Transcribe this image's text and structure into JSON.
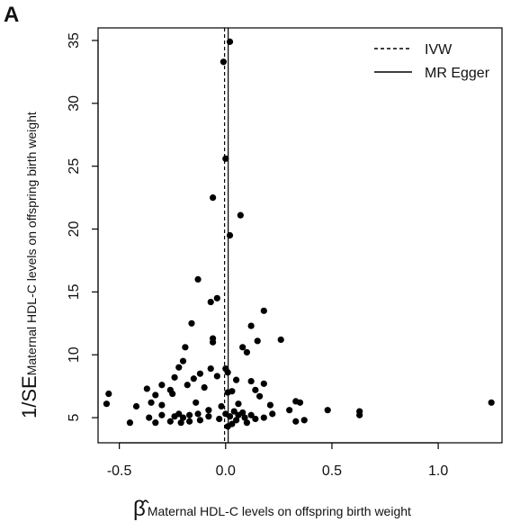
{
  "panel_label": "A",
  "chart_data": {
    "type": "scatter",
    "xlabel": {
      "main": "β̂",
      "sub": "Maternal HDL-C levels on offspring birth weight"
    },
    "ylabel": {
      "main": "1/SE",
      "sub": "Maternal HDL-C levels on offspring birth weight"
    },
    "xlim": [
      -0.6,
      1.3
    ],
    "ylim": [
      3,
      36
    ],
    "x_ticks": [
      -0.5,
      0.0,
      0.5,
      1.0
    ],
    "x_tick_labels": [
      "-0.5",
      "0.0",
      "0.5",
      "1.0"
    ],
    "y_ticks": [
      5,
      10,
      15,
      20,
      25,
      30,
      35
    ],
    "y_tick_labels": [
      "5",
      "10",
      "15",
      "20",
      "25",
      "30",
      "35"
    ],
    "grid": false,
    "legend": {
      "placement": "top-right",
      "entries": [
        {
          "label": "IVW",
          "line_style": "dashed",
          "x": -0.005
        },
        {
          "label": "MR Egger",
          "line_style": "solid",
          "x": 0.012
        }
      ]
    },
    "points": [
      {
        "x": 0.02,
        "y": 34.9
      },
      {
        "x": -0.01,
        "y": 33.3
      },
      {
        "x": 0.0,
        "y": 25.6
      },
      {
        "x": -0.06,
        "y": 22.5
      },
      {
        "x": 0.07,
        "y": 21.1
      },
      {
        "x": 0.02,
        "y": 19.5
      },
      {
        "x": -0.13,
        "y": 16.0
      },
      {
        "x": -0.04,
        "y": 14.5
      },
      {
        "x": -0.07,
        "y": 14.2
      },
      {
        "x": 0.18,
        "y": 13.5
      },
      {
        "x": -0.16,
        "y": 12.5
      },
      {
        "x": 0.12,
        "y": 12.3
      },
      {
        "x": -0.06,
        "y": 11.3
      },
      {
        "x": 0.15,
        "y": 11.1
      },
      {
        "x": 0.26,
        "y": 11.2
      },
      {
        "x": -0.06,
        "y": 11.0
      },
      {
        "x": -0.19,
        "y": 10.6
      },
      {
        "x": 0.08,
        "y": 10.6
      },
      {
        "x": 0.1,
        "y": 10.2
      },
      {
        "x": -0.2,
        "y": 9.5
      },
      {
        "x": -0.22,
        "y": 9.0
      },
      {
        "x": -0.07,
        "y": 8.9
      },
      {
        "x": -0.12,
        "y": 8.5
      },
      {
        "x": 0.0,
        "y": 8.9
      },
      {
        "x": 0.01,
        "y": 8.6
      },
      {
        "x": -0.24,
        "y": 8.2
      },
      {
        "x": -0.15,
        "y": 8.1
      },
      {
        "x": -0.04,
        "y": 8.3
      },
      {
        "x": 0.05,
        "y": 8.0
      },
      {
        "x": 0.12,
        "y": 7.9
      },
      {
        "x": 0.18,
        "y": 7.7
      },
      {
        "x": -0.18,
        "y": 7.6
      },
      {
        "x": -0.3,
        "y": 7.6
      },
      {
        "x": -0.37,
        "y": 7.3
      },
      {
        "x": -0.26,
        "y": 7.2
      },
      {
        "x": -0.1,
        "y": 7.4
      },
      {
        "x": 0.01,
        "y": 7.0
      },
      {
        "x": 0.14,
        "y": 7.2
      },
      {
        "x": 0.03,
        "y": 7.1
      },
      {
        "x": -0.33,
        "y": 6.8
      },
      {
        "x": -0.25,
        "y": 6.9
      },
      {
        "x": 0.16,
        "y": 6.7
      },
      {
        "x": -0.55,
        "y": 6.9
      },
      {
        "x": -0.56,
        "y": 6.1
      },
      {
        "x": -0.42,
        "y": 5.9
      },
      {
        "x": -0.35,
        "y": 6.2
      },
      {
        "x": -0.3,
        "y": 6.0
      },
      {
        "x": -0.14,
        "y": 6.2
      },
      {
        "x": -0.02,
        "y": 5.9
      },
      {
        "x": 0.06,
        "y": 6.1
      },
      {
        "x": 0.21,
        "y": 6.0
      },
      {
        "x": 0.33,
        "y": 6.3
      },
      {
        "x": 0.35,
        "y": 6.2
      },
      {
        "x": 0.3,
        "y": 5.6
      },
      {
        "x": -0.36,
        "y": 5.0
      },
      {
        "x": -0.3,
        "y": 5.2
      },
      {
        "x": -0.24,
        "y": 5.1
      },
      {
        "x": -0.22,
        "y": 5.3
      },
      {
        "x": -0.2,
        "y": 5.0
      },
      {
        "x": -0.17,
        "y": 5.2
      },
      {
        "x": -0.13,
        "y": 5.3
      },
      {
        "x": -0.08,
        "y": 5.6
      },
      {
        "x": -0.08,
        "y": 5.1
      },
      {
        "x": -0.03,
        "y": 4.9
      },
      {
        "x": 0.0,
        "y": 5.3
      },
      {
        "x": 0.02,
        "y": 5.1
      },
      {
        "x": 0.04,
        "y": 5.5
      },
      {
        "x": 0.06,
        "y": 5.2
      },
      {
        "x": 0.08,
        "y": 5.4
      },
      {
        "x": 0.09,
        "y": 5.0
      },
      {
        "x": 0.12,
        "y": 5.2
      },
      {
        "x": 0.14,
        "y": 4.9
      },
      {
        "x": 0.18,
        "y": 5.0
      },
      {
        "x": 0.22,
        "y": 5.3
      },
      {
        "x": -0.45,
        "y": 4.6
      },
      {
        "x": -0.33,
        "y": 4.6
      },
      {
        "x": -0.26,
        "y": 4.7
      },
      {
        "x": -0.21,
        "y": 4.6
      },
      {
        "x": -0.17,
        "y": 4.7
      },
      {
        "x": 0.03,
        "y": 4.5
      },
      {
        "x": 0.1,
        "y": 4.6
      },
      {
        "x": 0.05,
        "y": 4.8
      },
      {
        "x": -0.12,
        "y": 4.8
      },
      {
        "x": 0.33,
        "y": 4.7
      },
      {
        "x": 0.37,
        "y": 4.8
      },
      {
        "x": 0.01,
        "y": 4.3
      },
      {
        "x": 0.48,
        "y": 5.6
      },
      {
        "x": 0.63,
        "y": 5.5
      },
      {
        "x": 0.63,
        "y": 5.2
      },
      {
        "x": 1.25,
        "y": 6.2
      }
    ]
  }
}
